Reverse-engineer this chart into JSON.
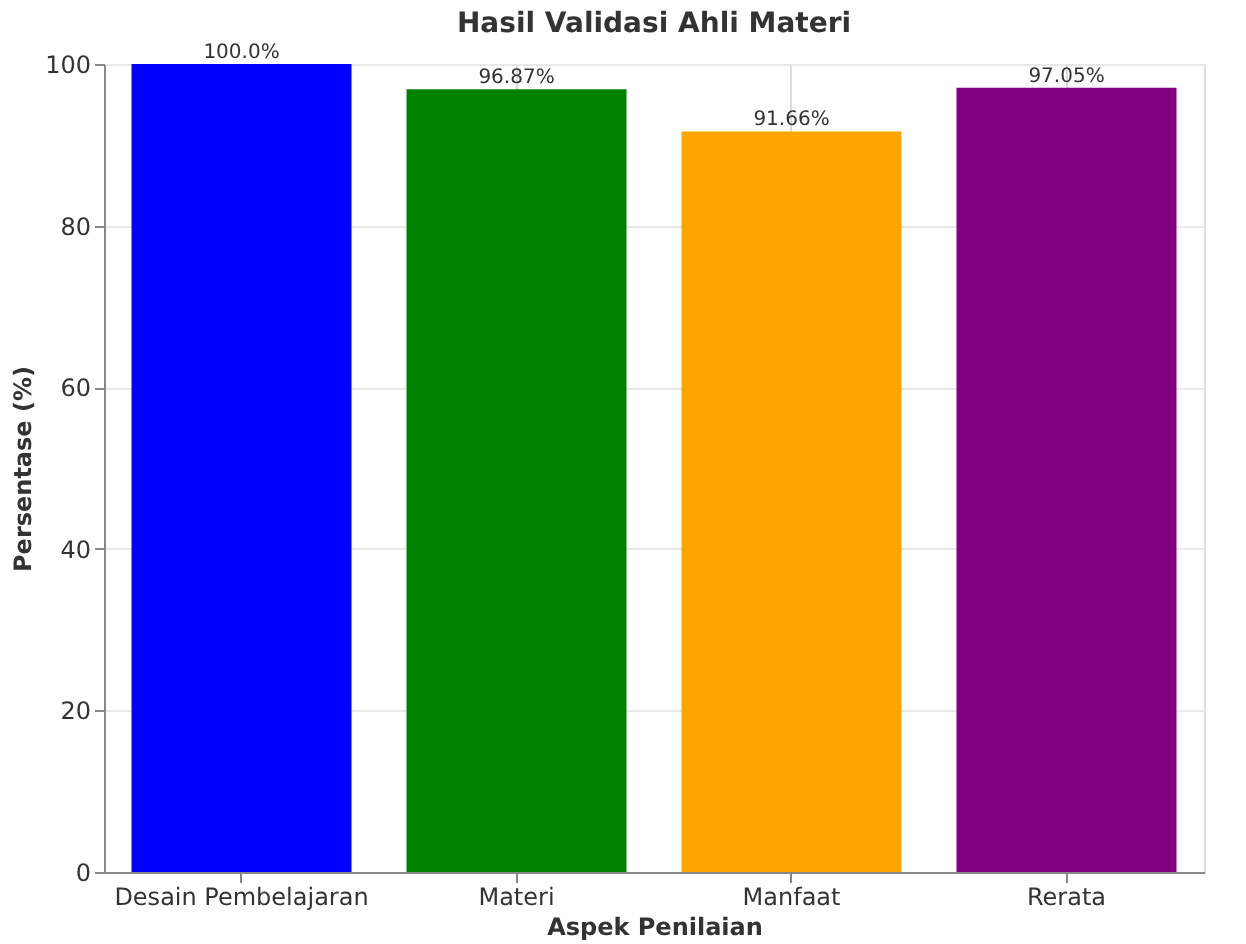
{
  "chart_data": {
    "type": "bar",
    "title": "Hasil Validasi Ahli Materi",
    "xlabel": "Aspek Penilaian",
    "ylabel": "Persentase (%)",
    "categories": [
      "Desain Pembelajaran",
      "Materi",
      "Manfaat",
      "Rerata"
    ],
    "values": [
      100,
      96.87,
      91.66,
      97.05
    ],
    "colors": [
      "#0000ff",
      "#008000",
      "#ffa500",
      "#800080"
    ],
    "value_labels": [
      "100.0%",
      "96.87%",
      "91.66%",
      "97.05%"
    ],
    "ylim": [
      0,
      100
    ],
    "yticks": [
      0,
      20,
      40,
      60,
      80,
      100
    ],
    "grid": true
  }
}
